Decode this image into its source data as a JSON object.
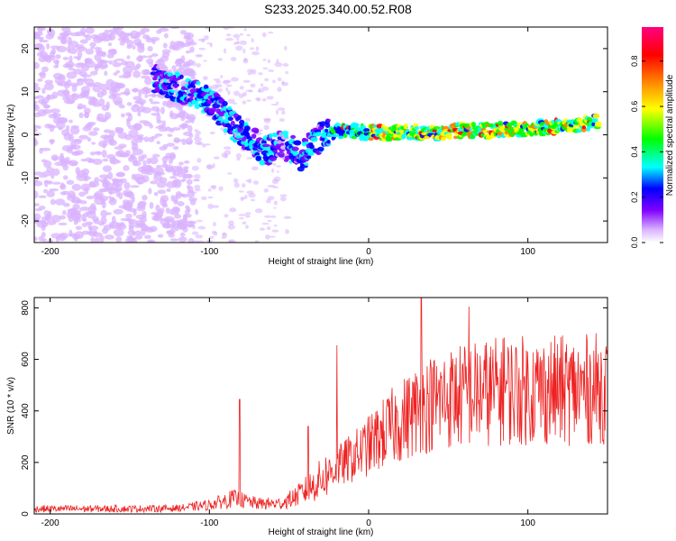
{
  "title": "S233.2025.340.00.52.R08",
  "chart_data": [
    {
      "type": "heatmap",
      "title": "S233.2025.340.00.52.R08",
      "xlabel": "Height of straight line (km)",
      "ylabel": "Frequency (Hz)",
      "xlim": [
        -210,
        150
      ],
      "ylim": [
        -25,
        25
      ],
      "xticks": [
        -200,
        -100,
        0,
        100
      ],
      "yticks": [
        -20,
        -10,
        0,
        10,
        20
      ],
      "colorbar": {
        "label": "Normalized spectral amplitude",
        "range": [
          0,
          0.95
        ],
        "ticks": [
          0.0,
          0.2,
          0.4,
          0.6,
          0.8
        ],
        "colors": [
          "#ffffff",
          "#d9b3ff",
          "#8000ff",
          "#0000ff",
          "#00ffff",
          "#00ff00",
          "#ffff00",
          "#ff8000",
          "#ff0000",
          "#ff0080"
        ]
      },
      "ridge": {
        "x": [
          -135,
          -120,
          -105,
          -95,
          -85,
          -75,
          -65,
          -58,
          -50,
          -42,
          -35,
          -28,
          -20,
          -10,
          0,
          20,
          40,
          60,
          80,
          100,
          120,
          145
        ],
        "y": [
          13,
          11,
          9,
          6,
          2,
          -1,
          -4,
          -2,
          -3,
          -5,
          -2,
          0,
          1,
          1,
          0.5,
          0.5,
          0.5,
          1,
          1,
          1.5,
          2,
          3
        ]
      }
    },
    {
      "type": "line",
      "xlabel": "Height of straight line (km)",
      "ylabel": "SNR (10 * v/v)",
      "xlim": [
        -210,
        150
      ],
      "ylim": [
        0,
        840
      ],
      "xticks": [
        -200,
        -100,
        0,
        100
      ],
      "yticks": [
        0,
        200,
        400,
        600,
        800
      ],
      "color": "#ee2222",
      "trend": {
        "x": [
          -210,
          -150,
          -120,
          -100,
          -85,
          -70,
          -55,
          -45,
          -35,
          -25,
          -15,
          -5,
          5,
          15,
          25,
          35,
          50,
          70,
          90,
          110,
          130,
          150
        ],
        "y": [
          20,
          20,
          22,
          35,
          60,
          40,
          40,
          70,
          110,
          160,
          200,
          240,
          290,
          340,
          380,
          420,
          450,
          470,
          480,
          480,
          480,
          490
        ]
      },
      "peaks": [
        {
          "x": -81,
          "y": 445
        },
        {
          "x": -38,
          "y": 340
        },
        {
          "x": -20,
          "y": 655
        },
        {
          "x": 33,
          "y": 840
        },
        {
          "x": 63,
          "y": 805
        },
        {
          "x": 85,
          "y": 685
        }
      ]
    }
  ]
}
